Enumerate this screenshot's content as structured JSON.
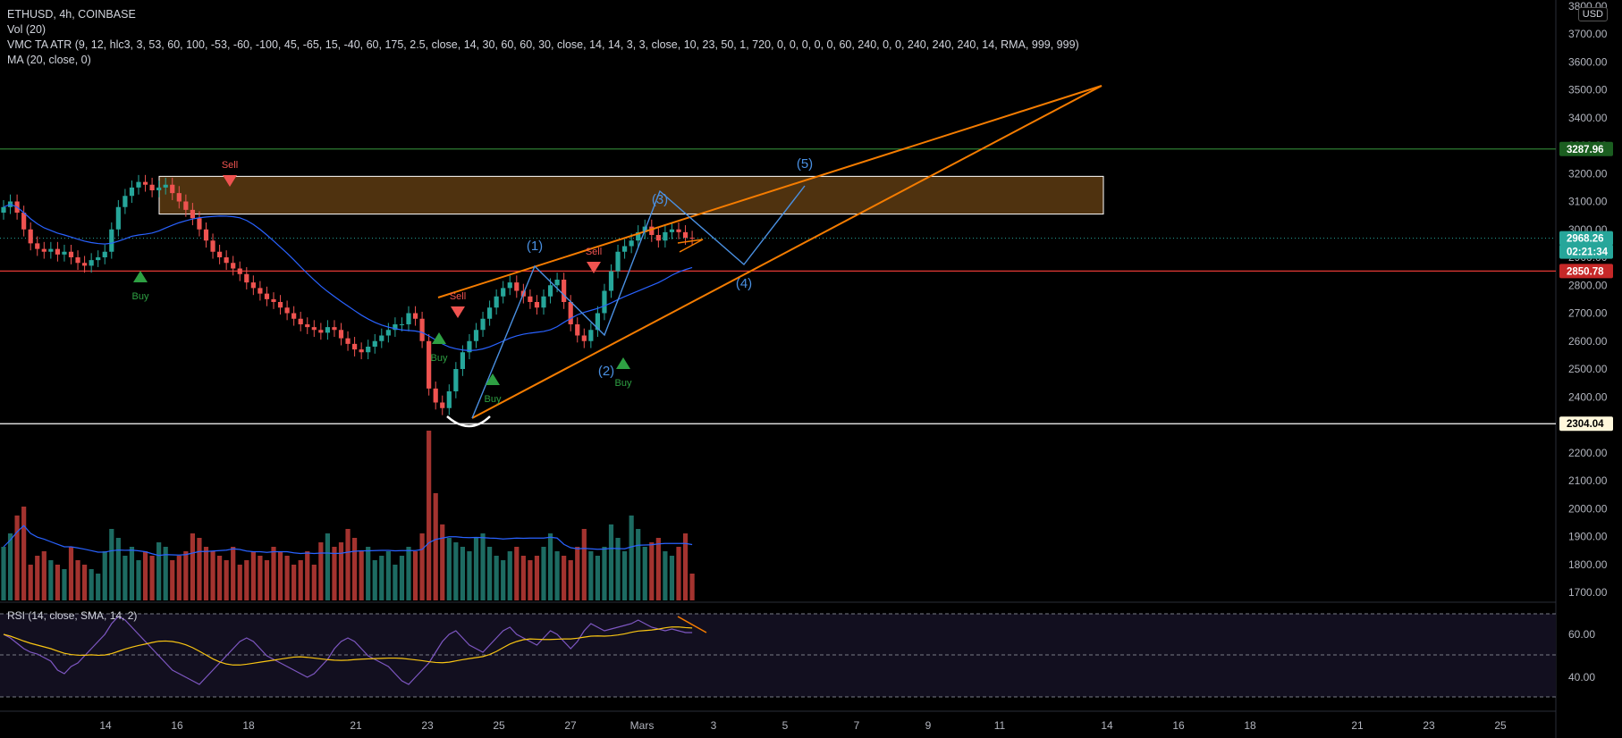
{
  "header": {
    "symbol_line": "ETHUSD, 4h, COINBASE",
    "vol_line": "Vol (20)",
    "vmc_line": "VMC TA ATR (9, 12, hlc3, 3, 53, 60, 100, -53, -60, -100, 45, -65, 15, -40, 60, 175, 2.5, close, 14, 30, 60, 60, 30, close, 14, 14, 3, 3, close, 10, 23, 50, 1, 720, 0, 0, 0, 0, 0, 60, 240, 0, 0, 240, 240, 240, 14, RMA, 999, 999)",
    "ma_line": "MA (20, close, 0)",
    "currency": "USD"
  },
  "rsi_panel": {
    "label": "RSI (14, close, SMA, 14, 2)",
    "ticks": [
      "60.00",
      "40.00"
    ]
  },
  "colors": {
    "background": "#000000",
    "up": "#26a69a",
    "down": "#ef5350",
    "ma": "#2962ff",
    "trend_orange": "#f57c00",
    "resistance_green": "#2e7d32",
    "support_red": "#e53935",
    "zone_fill": "#5d3b12",
    "wave_blue": "#4a90e2",
    "rsi_line": "#7e57c2",
    "rsi_ma": "#f9c513",
    "vol_up": "#1d6b62",
    "vol_down": "#a3332f"
  },
  "chart_data": {
    "type": "candlestick",
    "title": "ETHUSD, 4h, COINBASE",
    "y_axis_ticks": [
      "3800.00",
      "3700.00",
      "3600.00",
      "3500.00",
      "3400.00",
      "3300.00",
      "3200.00",
      "3100.00",
      "3000.00",
      "2900.00",
      "2800.00",
      "2700.00",
      "2600.00",
      "2500.00",
      "2400.00",
      "2300.00",
      "2200.00",
      "2100.00",
      "2000.00",
      "1900.00",
      "1800.00",
      "1700.00"
    ],
    "x_axis_ticks": [
      "14",
      "16",
      "18",
      "21",
      "23",
      "25",
      "27",
      "Mars",
      "3",
      "5",
      "7",
      "9",
      "11",
      "14",
      "16",
      "18",
      "21",
      "23",
      "25"
    ],
    "ylim": [
      1700,
      3800
    ],
    "price_labels": [
      {
        "value": "3287.96",
        "kind": "resistance"
      },
      {
        "value": "2968.26",
        "kind": "last"
      },
      {
        "value": "02:21:34",
        "kind": "countdown"
      },
      {
        "value": "2850.78",
        "kind": "support"
      },
      {
        "value": "2304.04",
        "kind": "low"
      }
    ],
    "horizontal_levels": [
      3287.96,
      2850.78,
      2304.04
    ],
    "resistance_zone": {
      "low": 3055,
      "high": 3190
    },
    "signals": [
      {
        "text": "Sell",
        "direction": "down"
      },
      {
        "text": "Buy",
        "direction": "up"
      },
      {
        "text": "Sell",
        "direction": "down"
      },
      {
        "text": "Buy",
        "direction": "up"
      },
      {
        "text": "Buy",
        "direction": "up"
      },
      {
        "text": "Sell",
        "direction": "down"
      },
      {
        "text": "Buy",
        "direction": "up"
      }
    ],
    "wave_labels": [
      "(1)",
      "(2)",
      "(3)",
      "(4)",
      "(5)"
    ],
    "closes": [
      3080,
      3100,
      3060,
      3000,
      2950,
      2930,
      2920,
      2930,
      2910,
      2920,
      2900,
      2880,
      2870,
      2890,
      2900,
      2920,
      3000,
      3080,
      3120,
      3150,
      3170,
      3160,
      3140,
      3150,
      3160,
      3130,
      3100,
      3070,
      3040,
      3000,
      2960,
      2920,
      2900,
      2880,
      2860,
      2840,
      2810,
      2790,
      2770,
      2750,
      2740,
      2720,
      2700,
      2680,
      2660,
      2650,
      2640,
      2630,
      2650,
      2640,
      2610,
      2590,
      2570,
      2560,
      2580,
      2600,
      2620,
      2640,
      2660,
      2660,
      2700,
      2680,
      2600,
      2430,
      2380,
      2360,
      2420,
      2500,
      2560,
      2600,
      2640,
      2680,
      2720,
      2760,
      2790,
      2810,
      2780,
      2760,
      2740,
      2720,
      2760,
      2800,
      2820,
      2740,
      2660,
      2620,
      2600,
      2640,
      2700,
      2780,
      2850,
      2920,
      2940,
      2960,
      2990,
      3010,
      2980,
      2960,
      2990,
      3000,
      2990,
      2970,
      2968
    ],
    "volume": [
      60,
      75,
      95,
      105,
      40,
      50,
      55,
      45,
      40,
      35,
      60,
      45,
      40,
      35,
      30,
      55,
      80,
      70,
      50,
      60,
      45,
      55,
      50,
      65,
      60,
      45,
      50,
      55,
      75,
      70,
      60,
      55,
      50,
      45,
      60,
      40,
      45,
      55,
      50,
      45,
      60,
      55,
      50,
      40,
      45,
      55,
      40,
      65,
      75,
      60,
      65,
      80,
      70,
      55,
      60,
      45,
      50,
      55,
      40,
      50,
      60,
      55,
      75,
      190,
      120,
      85,
      70,
      65,
      60,
      55,
      70,
      75,
      60,
      50,
      45,
      55,
      60,
      50,
      45,
      50,
      60,
      75,
      55,
      50,
      45,
      60,
      80,
      55,
      50,
      60,
      85,
      70,
      55,
      95,
      80,
      60,
      65,
      70,
      55,
      50,
      60,
      75,
      30
    ],
    "rsi": [
      60,
      58,
      55,
      52,
      50,
      49,
      47,
      45,
      40,
      38,
      42,
      44,
      48,
      52,
      56,
      60,
      66,
      70,
      68,
      64,
      60,
      56,
      52,
      48,
      44,
      40,
      38,
      36,
      34,
      32,
      36,
      40,
      44,
      48,
      52,
      56,
      58,
      56,
      52,
      48,
      46,
      44,
      42,
      40,
      38,
      36,
      38,
      42,
      46,
      52,
      56,
      58,
      56,
      52,
      48,
      46,
      44,
      42,
      38,
      34,
      32,
      36,
      40,
      44,
      50,
      56,
      60,
      62,
      58,
      54,
      52,
      50,
      54,
      58,
      62,
      64,
      60,
      58,
      56,
      54,
      58,
      62,
      60,
      56,
      52,
      56,
      62,
      66,
      64,
      62,
      63,
      64,
      65,
      66,
      68,
      66,
      64,
      63,
      62,
      63,
      62,
      61,
      61
    ],
    "rsi_ylim": [
      25,
      75
    ]
  }
}
